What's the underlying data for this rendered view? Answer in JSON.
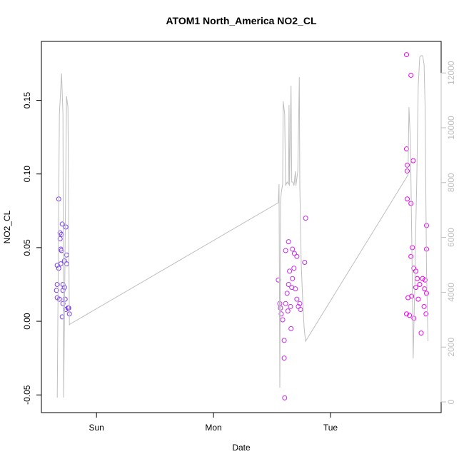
{
  "chart_data": {
    "type": "scatter",
    "title": "ATOM1 North_America NO2_CL",
    "xlabel": "Date",
    "ylabel": "NO2_CL",
    "xlim": [
      -11.3,
      70.7
    ],
    "xticks": [
      {
        "value": 0,
        "label": "Sun"
      },
      {
        "value": 24,
        "label": "Mon"
      },
      {
        "value": 48,
        "label": "Tue"
      }
    ],
    "ylim": [
      -0.062,
      0.19
    ],
    "yticks": [
      -0.05,
      {
        "value": 0,
        "label": "0.00"
      },
      0.05,
      {
        "value": 0.1,
        "label": "0.10"
      },
      0.15
    ],
    "y2lim": [
      -390,
      13150
    ],
    "y2ticks": [
      0,
      2000,
      4000,
      6000,
      8000,
      10000,
      12000
    ],
    "y2color": "#bebebe",
    "series": [
      {
        "color": "#7b3cf0",
        "x": [
          -7.75,
          -7.46,
          -7.17,
          -7.46,
          -7.32,
          -7.17,
          -7.02,
          -6.29,
          -8.05,
          -7.75,
          -7.32,
          -6.58,
          -6.14,
          -6.14,
          -6.88,
          -8.05,
          -8.2,
          -8.05,
          -7.61,
          -6.88,
          -6.88,
          -6.58,
          -6.44,
          -7.02,
          -5.7,
          -5.56,
          -6.29,
          -5.85
        ],
        "values": [
          0.083,
          0.06,
          0.059,
          0.056,
          0.049,
          0.048,
          0.066,
          0.064,
          0.038,
          0.036,
          0.039,
          0.041,
          0.045,
          0.039,
          0.025,
          0.025,
          0.021,
          0.016,
          0.015,
          0.021,
          0.012,
          0.023,
          0.015,
          0.003,
          0.009,
          0.005,
          0.008,
          0.009
        ]
      },
      {
        "color": "#c62ee8",
        "x": [
          38.5,
          38.6,
          38.5,
          37.3,
          38.8,
          39.4,
          40.2,
          40.6,
          41.1,
          42.9,
          42.7,
          37.6,
          37.75,
          37.9,
          38.2,
          38.8,
          39.1,
          39.4,
          39.6,
          39.9,
          40.2,
          40.5,
          40.8,
          41.1,
          41.4,
          41.7,
          41.85,
          39.25,
          39.8,
          40.05
        ],
        "values": [
          -0.025,
          -0.052,
          -0.013,
          0.028,
          0.048,
          0.054,
          0.049,
          0.046,
          0.044,
          0.07,
          0.04,
          0.012,
          0.009,
          0.005,
          0.001,
          0.012,
          0.019,
          0.025,
          0.034,
          -0.005,
          0.029,
          0.036,
          0.022,
          0.015,
          0.01,
          0.012,
          0.008,
          0.007,
          0.01,
          0.023
        ]
      },
      {
        "color": "#f000f0",
        "x": [
          63.6,
          64.5,
          63.6,
          63.75,
          63.75,
          64.96,
          63.75,
          64.5,
          64.8,
          67.7,
          67.7,
          64.5,
          65.1,
          65.5,
          65.8,
          66.3,
          66.9,
          67.4,
          67.3,
          63.9,
          64.65,
          64.2,
          63.6,
          65.1,
          66.6,
          67.6,
          67.2,
          67.7,
          66.0,
          65.5
        ],
        "values": [
          0.181,
          0.167,
          0.117,
          0.106,
          0.102,
          0.109,
          0.083,
          0.08,
          0.05,
          0.065,
          0.049,
          0.044,
          0.036,
          0.034,
          0.029,
          0.025,
          0.029,
          0.028,
          0.022,
          0.016,
          0.017,
          0.004,
          0.005,
          0.002,
          -0.008,
          0.005,
          0.01,
          0.019,
          0.015,
          0.023
        ]
      },
      {
        "color": "#bebebe",
        "axis": "y2",
        "line": true,
        "x": [
          -8.05,
          -7.61,
          -7.17,
          -6.88,
          -6.73,
          -6.14,
          -5.85,
          -5.56,
          -5.41,
          37.3,
          37.45,
          37.6,
          37.75,
          37.9,
          38.2,
          38.3,
          38.6,
          38.8,
          39.1,
          39.4,
          39.5,
          39.6,
          39.9,
          40.05,
          40.3,
          40.5,
          40.8,
          40.9,
          41.3,
          41.6,
          41.7,
          42.0,
          42.3,
          42.6,
          42.9,
          63.9,
          64.1,
          64.4,
          64.7,
          64.96,
          65.3,
          65.4,
          65.7,
          66.0,
          66.3,
          66.6,
          66.9,
          67.2,
          67.4,
          67.7,
          68.0
        ],
        "values": [
          156,
          10495,
          11979,
          10495,
          156,
          11146,
          10755,
          2812,
          2838,
          7265,
          7942,
          521,
          7291,
          7630,
          7942,
          10963,
          10495,
          7890,
          8020,
          7942,
          10833,
          7890,
          11536,
          8020,
          8020,
          7890,
          8411,
          7890,
          8411,
          11849,
          7890,
          5026,
          3724,
          2682,
          2213,
          8281,
          10755,
          9453,
          5547,
          1588,
          4245,
          5547,
          8151,
          11536,
          12578,
          12630,
          12630,
          12317,
          10755,
          4765,
          2213
        ]
      }
    ]
  }
}
